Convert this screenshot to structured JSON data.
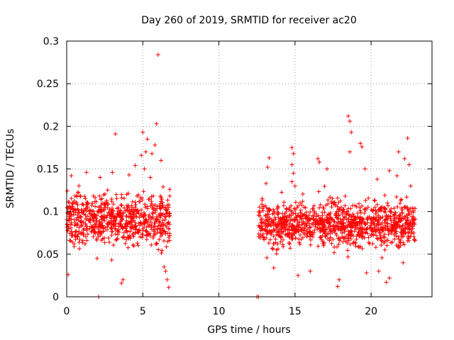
{
  "chart_data": {
    "type": "scatter",
    "title": "Day 260 of 2019, SRMTID for receiver ac20",
    "xlabel": "GPS time / hours",
    "ylabel": "SRMTID / TECUs",
    "xlim": [
      0,
      24
    ],
    "ylim": [
      0,
      0.3
    ],
    "grid": true,
    "marker": "+",
    "color": "#ff0000",
    "xticks": [
      0,
      5,
      10,
      15,
      20
    ],
    "xtick_labels": [
      "0",
      "5",
      "10",
      "15",
      "20"
    ],
    "yticks": [
      0,
      0.05,
      0.1,
      0.15,
      0.2,
      0.25,
      0.3
    ],
    "ytick_labels": [
      "0",
      "0.05",
      "0.1",
      "0.15",
      "0.2",
      "0.25",
      "0.3"
    ],
    "series": [
      {
        "name": "ac20",
        "segments": [
          {
            "x_start": 0.0,
            "x_end": 6.8,
            "typical_min": 0.03,
            "typical_max": 0.15,
            "median": 0.075
          },
          {
            "x_start": 12.6,
            "x_end": 22.9,
            "typical_min": 0.03,
            "typical_max": 0.14,
            "median": 0.075
          }
        ],
        "points": [
          [
            6.0,
            0.284
          ],
          [
            3.2,
            0.191
          ],
          [
            5.0,
            0.193
          ],
          [
            5.9,
            0.203
          ],
          [
            5.3,
            0.185
          ],
          [
            5.8,
            0.178
          ],
          [
            5.2,
            0.17
          ],
          [
            4.9,
            0.166
          ],
          [
            5.6,
            0.168
          ],
          [
            6.2,
            0.16
          ],
          [
            4.5,
            0.154
          ],
          [
            5.1,
            0.15
          ],
          [
            3.0,
            0.146
          ],
          [
            1.3,
            0.146
          ],
          [
            2.2,
            0.14
          ],
          [
            0.3,
            0.142
          ],
          [
            5.5,
            0.14
          ],
          [
            4.1,
            0.143
          ],
          [
            3.6,
            0.12
          ],
          [
            0.6,
            0.11
          ],
          [
            6.7,
            0.011
          ],
          [
            6.6,
            0.02
          ],
          [
            3.6,
            0.016
          ],
          [
            3.7,
            0.02
          ],
          [
            0.1,
            0.026
          ],
          [
            6.5,
            0.03
          ],
          [
            2.0,
            0.045
          ],
          [
            6.4,
            0.035
          ],
          [
            2.1,
            0.0
          ],
          [
            12.5,
            0.0
          ],
          [
            12.6,
            0.0
          ],
          [
            18.5,
            0.212
          ],
          [
            18.6,
            0.206
          ],
          [
            18.7,
            0.193
          ],
          [
            19.3,
            0.18
          ],
          [
            14.8,
            0.175
          ],
          [
            14.9,
            0.168
          ],
          [
            22.4,
            0.186
          ],
          [
            19.4,
            0.176
          ],
          [
            21.8,
            0.17
          ],
          [
            18.6,
            0.17
          ],
          [
            13.3,
            0.163
          ],
          [
            16.5,
            0.162
          ],
          [
            16.6,
            0.158
          ],
          [
            22.2,
            0.162
          ],
          [
            14.8,
            0.155
          ],
          [
            22.5,
            0.155
          ],
          [
            19.6,
            0.15
          ],
          [
            14.9,
            0.145
          ],
          [
            17.1,
            0.15
          ],
          [
            13.2,
            0.152
          ],
          [
            21.2,
            0.148
          ],
          [
            14.8,
            0.135
          ],
          [
            20.4,
            0.138
          ],
          [
            21.7,
            0.142
          ],
          [
            15.0,
            0.13
          ],
          [
            13.1,
            0.133
          ],
          [
            22.6,
            0.13
          ],
          [
            18.3,
            0.118
          ],
          [
            15.5,
            0.112
          ],
          [
            17.3,
            0.117
          ],
          [
            21.0,
            0.017
          ],
          [
            17.8,
            0.012
          ],
          [
            17.9,
            0.02
          ],
          [
            19.7,
            0.028
          ],
          [
            16.0,
            0.03
          ],
          [
            13.6,
            0.034
          ],
          [
            21.2,
            0.022
          ],
          [
            22.1,
            0.04
          ],
          [
            15.2,
            0.025
          ],
          [
            20.5,
            0.03
          ]
        ]
      }
    ]
  }
}
